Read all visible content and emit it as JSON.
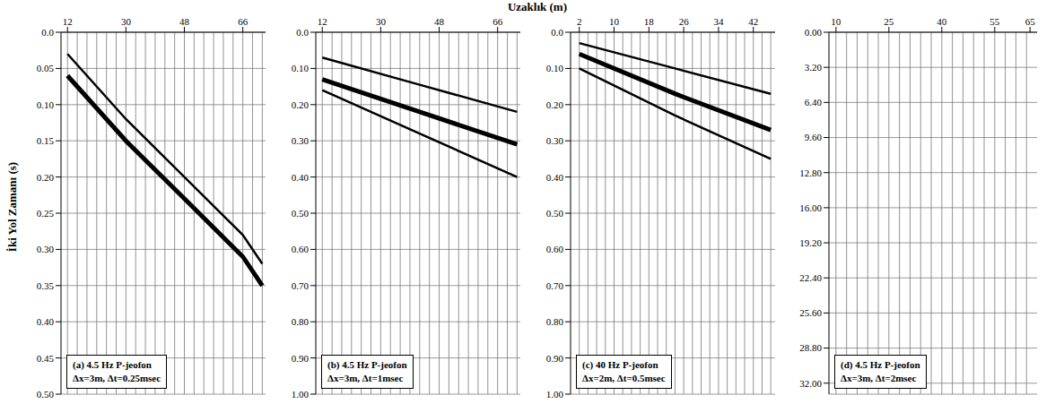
{
  "xlabel": "Uzaklık (m)",
  "ylabel": "İki Yol Zamanı (s)",
  "chart_data": [
    {
      "type": "line",
      "title": "(a) 4.5 Hz P-jeofon",
      "subtitle": "Δx=3m, Δt=0.25msec",
      "grid": true,
      "xlim": [
        10,
        73
      ],
      "xticks": [
        12,
        30,
        48,
        66
      ],
      "ylim": [
        0,
        0.5
      ],
      "yticks": [
        {
          "value": 0,
          "label": "0.0"
        },
        0.05,
        {
          "value": 0.1,
          "label": "0.10"
        },
        0.15,
        {
          "value": 0.2,
          "label": "0.20"
        },
        0.25,
        {
          "value": 0.3,
          "label": "0.30"
        },
        0.35,
        {
          "value": 0.4,
          "label": "0.40"
        },
        0.45,
        {
          "value": 0.5,
          "label": "0.50"
        }
      ],
      "traces": [
        12,
        15,
        18,
        21,
        24,
        27,
        30,
        33,
        36,
        39,
        42,
        45,
        48,
        51,
        54,
        57,
        60,
        63,
        66,
        69,
        72
      ],
      "series": [
        {
          "color": "#000000",
          "x": [
            12,
            30,
            48,
            66,
            72
          ],
          "values": [
            0.03,
            0.12,
            0.2,
            0.28,
            0.32
          ]
        },
        {
          "color": "#000000",
          "x": [
            12,
            30,
            48,
            66,
            72
          ],
          "values": [
            0.06,
            0.15,
            0.23,
            0.31,
            0.35
          ]
        }
      ]
    },
    {
      "type": "line",
      "title": "(b) 4.5 Hz P-jeofon",
      "subtitle": "Δx=3m, Δt=1msec",
      "grid": true,
      "xlim": [
        10,
        73
      ],
      "xticks": [
        12,
        30,
        48,
        66
      ],
      "ylim": [
        0,
        1
      ],
      "yticks": [
        {
          "value": 0,
          "label": "0.0"
        },
        {
          "value": 0.1,
          "label": "0.10"
        },
        {
          "value": 0.2,
          "label": "0.20"
        },
        {
          "value": 0.3,
          "label": "0.30"
        },
        {
          "value": 0.4,
          "label": "0.40"
        },
        {
          "value": 0.5,
          "label": "0.50"
        },
        {
          "value": 0.6,
          "label": "0.60"
        },
        {
          "value": 0.7,
          "label": "0.70"
        },
        {
          "value": 0.8,
          "label": "0.80"
        },
        {
          "value": 0.9,
          "label": "0.90"
        },
        {
          "value": 1,
          "label": "1.00"
        }
      ],
      "traces": [
        12,
        15,
        18,
        21,
        24,
        27,
        30,
        33,
        36,
        39,
        42,
        45,
        48,
        51,
        54,
        57,
        60,
        63,
        66,
        69,
        72
      ],
      "series": [
        {
          "color": "#000000",
          "x": [
            12,
            42,
            72
          ],
          "values": [
            0.07,
            0.145,
            0.22
          ]
        },
        {
          "color": "#000000",
          "x": [
            12,
            42,
            72
          ],
          "values": [
            0.13,
            0.22,
            0.31
          ]
        },
        {
          "color": "#000000",
          "x": [
            12,
            42,
            72
          ],
          "values": [
            0.16,
            0.28,
            0.4
          ]
        }
      ]
    },
    {
      "type": "line",
      "title": "(c) 40 Hz P-jeofon",
      "subtitle": "Δx=2m, Δt=0.5msec",
      "grid": true,
      "xlim": [
        0,
        47
      ],
      "xticks": [
        2,
        10,
        18,
        26,
        34,
        42
      ],
      "ylim": [
        0,
        1
      ],
      "yticks": [
        {
          "value": 0,
          "label": "0.0"
        },
        {
          "value": 0.1,
          "label": "0.10"
        },
        {
          "value": 0.2,
          "label": "0.20"
        },
        {
          "value": 0.3,
          "label": "0.30"
        },
        {
          "value": 0.4,
          "label": "0.40"
        },
        {
          "value": 0.5,
          "label": "0.50"
        },
        {
          "value": 0.6,
          "label": "0.60"
        },
        {
          "value": 0.7,
          "label": "0.70"
        },
        {
          "value": 0.8,
          "label": "0.80"
        },
        {
          "value": 0.9,
          "label": "0.90"
        },
        {
          "value": 1,
          "label": "1.00"
        }
      ],
      "traces": [
        2,
        4,
        6,
        8,
        10,
        12,
        14,
        16,
        18,
        20,
        22,
        24,
        26,
        28,
        30,
        32,
        34,
        36,
        38,
        40,
        42,
        44,
        46
      ],
      "series": [
        {
          "color": "#000000",
          "x": [
            2,
            24,
            46
          ],
          "values": [
            0.03,
            0.1,
            0.17
          ]
        },
        {
          "color": "#000000",
          "x": [
            2,
            24,
            46
          ],
          "values": [
            0.06,
            0.17,
            0.27
          ]
        },
        {
          "color": "#000000",
          "x": [
            2,
            24,
            46
          ],
          "values": [
            0.1,
            0.23,
            0.35
          ]
        }
      ]
    },
    {
      "type": "line",
      "title": "(d) 4.5 Hz P-jeofon",
      "subtitle": "Δx=3m, Δt=2msec",
      "grid": true,
      "xlim": [
        8,
        67
      ],
      "xticks": [
        10,
        25,
        40,
        55,
        65
      ],
      "ylim": [
        0,
        33
      ],
      "yticks": [
        {
          "value": 0,
          "label": "0.00"
        },
        {
          "value": 3.2,
          "label": "3.20"
        },
        {
          "value": 6.4,
          "label": "6.40"
        },
        {
          "value": 9.6,
          "label": "9.60"
        },
        {
          "value": 12.8,
          "label": "12.80"
        },
        {
          "value": 16,
          "label": "16.00"
        },
        {
          "value": 19.2,
          "label": "19.20"
        },
        {
          "value": 22.4,
          "label": "22.40"
        },
        {
          "value": 25.6,
          "label": "25.60"
        },
        {
          "value": 28.8,
          "label": "28.80"
        },
        {
          "value": 32,
          "label": "32.00"
        }
      ],
      "traces": [
        10,
        13,
        16,
        19,
        22,
        25,
        28,
        31,
        34,
        37,
        40,
        43,
        46,
        49,
        52,
        55,
        58,
        61,
        64
      ],
      "series": []
    }
  ]
}
